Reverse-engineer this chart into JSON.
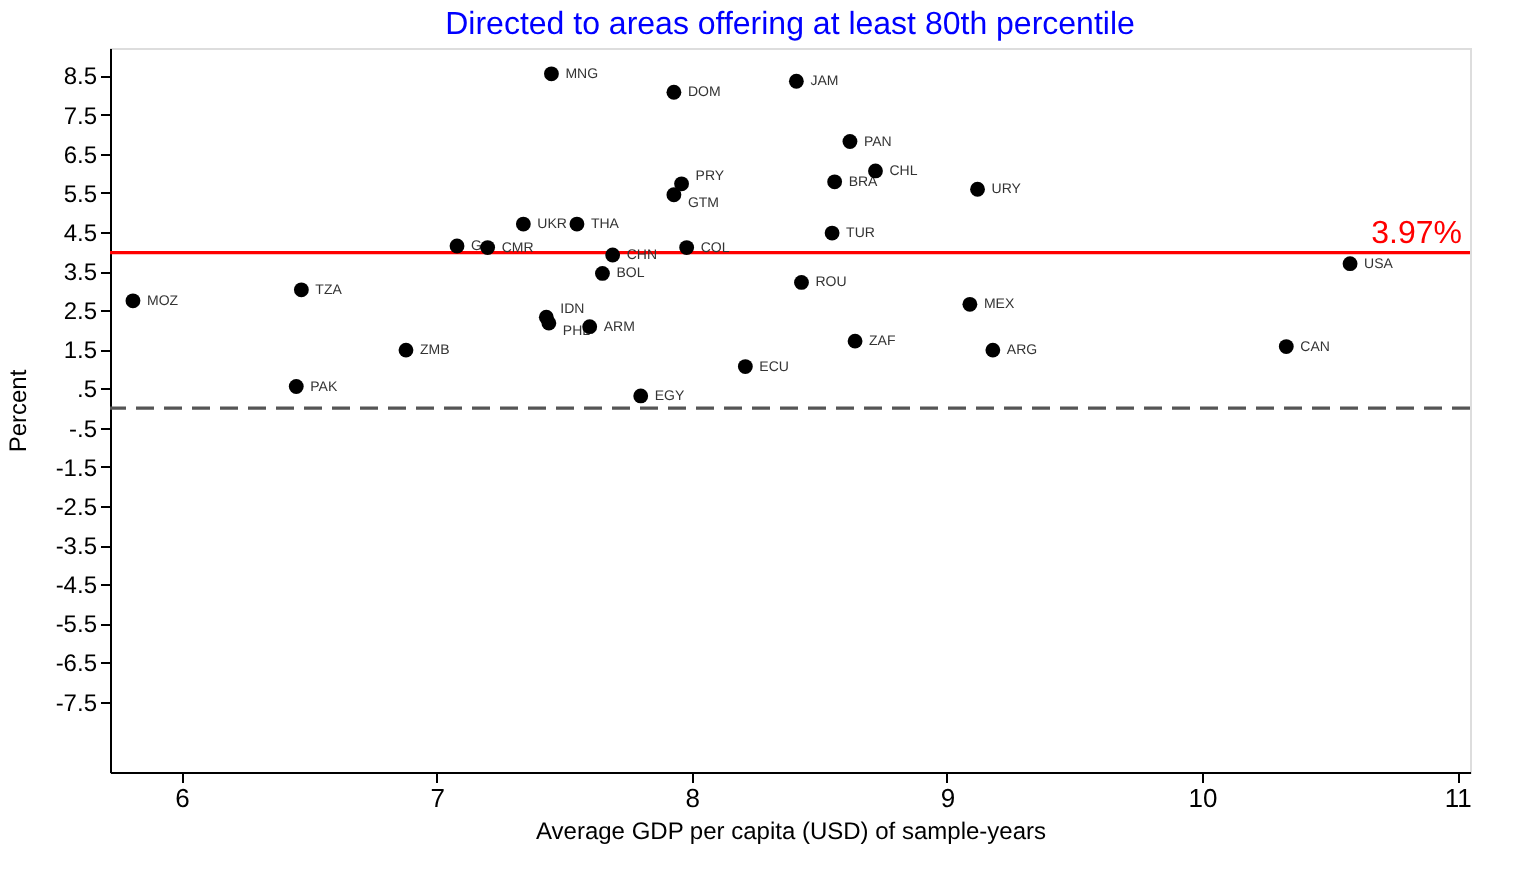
{
  "chart_data": {
    "type": "scatter",
    "title": "Directed to areas offering at least 80th percentile",
    "xlabel": "Average GDP per capita (USD) of sample-years",
    "ylabel": "Percent",
    "series": [
      {
        "color": "#000000",
        "marker": "circle",
        "x": [
          7.45,
          7.93,
          8.41,
          8.62,
          8.72,
          8.56,
          9.12,
          7.96,
          7.93,
          7.34,
          7.55,
          8.55,
          7.08,
          7.2,
          7.98,
          7.69,
          7.65,
          8.43,
          9.09,
          10.58,
          5.81,
          6.47,
          7.43,
          7.44,
          7.6,
          8.64,
          9.18,
          10.33,
          6.88,
          8.21,
          6.45,
          7.8
        ],
        "values": [
          8.54,
          8.07,
          8.35,
          6.81,
          6.06,
          5.78,
          5.59,
          5.73,
          5.45,
          4.7,
          4.7,
          4.47,
          4.14,
          4.1,
          4.1,
          3.91,
          3.44,
          3.21,
          2.65,
          3.69,
          2.74,
          3.02,
          2.32,
          2.17,
          2.08,
          1.71,
          1.48,
          1.57,
          1.48,
          1.06,
          0.55,
          0.31
        ]
      }
    ],
    "annotations": [
      {
        "text": "MNG",
        "x": 7.45,
        "y": 8.54
      },
      {
        "text": "DOM",
        "x": 7.93,
        "y": 8.07
      },
      {
        "text": "JAM",
        "x": 8.41,
        "y": 8.35
      },
      {
        "text": "PAN",
        "x": 8.62,
        "y": 6.81
      },
      {
        "text": "CHL",
        "x": 8.72,
        "y": 6.06
      },
      {
        "text": "BRA",
        "x": 8.56,
        "y": 5.78
      },
      {
        "text": "URY",
        "x": 9.12,
        "y": 5.59
      },
      {
        "text": "PRY",
        "x": 7.96,
        "y": 5.73
      },
      {
        "text": "GTM",
        "x": 7.93,
        "y": 5.45
      },
      {
        "text": "UKR",
        "x": 7.34,
        "y": 4.7
      },
      {
        "text": "THA",
        "x": 7.55,
        "y": 4.7
      },
      {
        "text": "TUR",
        "x": 8.55,
        "y": 4.47
      },
      {
        "text": "G",
        "x": 7.08,
        "y": 4.14
      },
      {
        "text": "CMR",
        "x": 7.2,
        "y": 4.1
      },
      {
        "text": "COL",
        "x": 7.98,
        "y": 4.1
      },
      {
        "text": "CHN",
        "x": 7.69,
        "y": 3.91
      },
      {
        "text": "BOL",
        "x": 7.65,
        "y": 3.44
      },
      {
        "text": "ROU",
        "x": 8.43,
        "y": 3.21
      },
      {
        "text": "MEX",
        "x": 9.09,
        "y": 2.65
      },
      {
        "text": "USA",
        "x": 10.58,
        "y": 3.69
      },
      {
        "text": "MOZ",
        "x": 5.81,
        "y": 2.74
      },
      {
        "text": "TZA",
        "x": 6.47,
        "y": 3.02
      },
      {
        "text": "IDN",
        "x": 7.43,
        "y": 2.32
      },
      {
        "text": "PHL",
        "x": 7.44,
        "y": 2.17
      },
      {
        "text": "ARM",
        "x": 7.6,
        "y": 2.08
      },
      {
        "text": "ZAF",
        "x": 8.64,
        "y": 1.71
      },
      {
        "text": "ARG",
        "x": 9.18,
        "y": 1.48
      },
      {
        "text": "CAN",
        "x": 10.33,
        "y": 1.57
      },
      {
        "text": "ZMB",
        "x": 6.88,
        "y": 1.48
      },
      {
        "text": "ECU",
        "x": 8.21,
        "y": 1.06
      },
      {
        "text": "PAK",
        "x": 6.45,
        "y": 0.55
      },
      {
        "text": "EGY",
        "x": 7.8,
        "y": 0.31
      }
    ],
    "ref_lines": [
      {
        "axis": "y",
        "value": 3.97,
        "label": "3.97%",
        "color": "#ff0000",
        "line_style": "solid"
      },
      {
        "axis": "y",
        "value": 0,
        "color": "#555555",
        "line_style": "dashed"
      }
    ],
    "xlim": [
      5.72,
      11.05
    ],
    "ylim": [
      -9.3,
      9.2
    ],
    "xticks": [
      6,
      7,
      8,
      9,
      10,
      11
    ],
    "yticks": [
      8.5,
      7.5,
      6.5,
      5.5,
      4.5,
      3.5,
      2.5,
      1.5,
      {
        "value": 0.5,
        "label": ".5"
      },
      {
        "value": -0.5,
        "label": "-.5"
      },
      -1.5,
      -2.5,
      -3.5,
      -4.5,
      -5.5,
      -6.5,
      -7.5
    ],
    "grid": false
  }
}
